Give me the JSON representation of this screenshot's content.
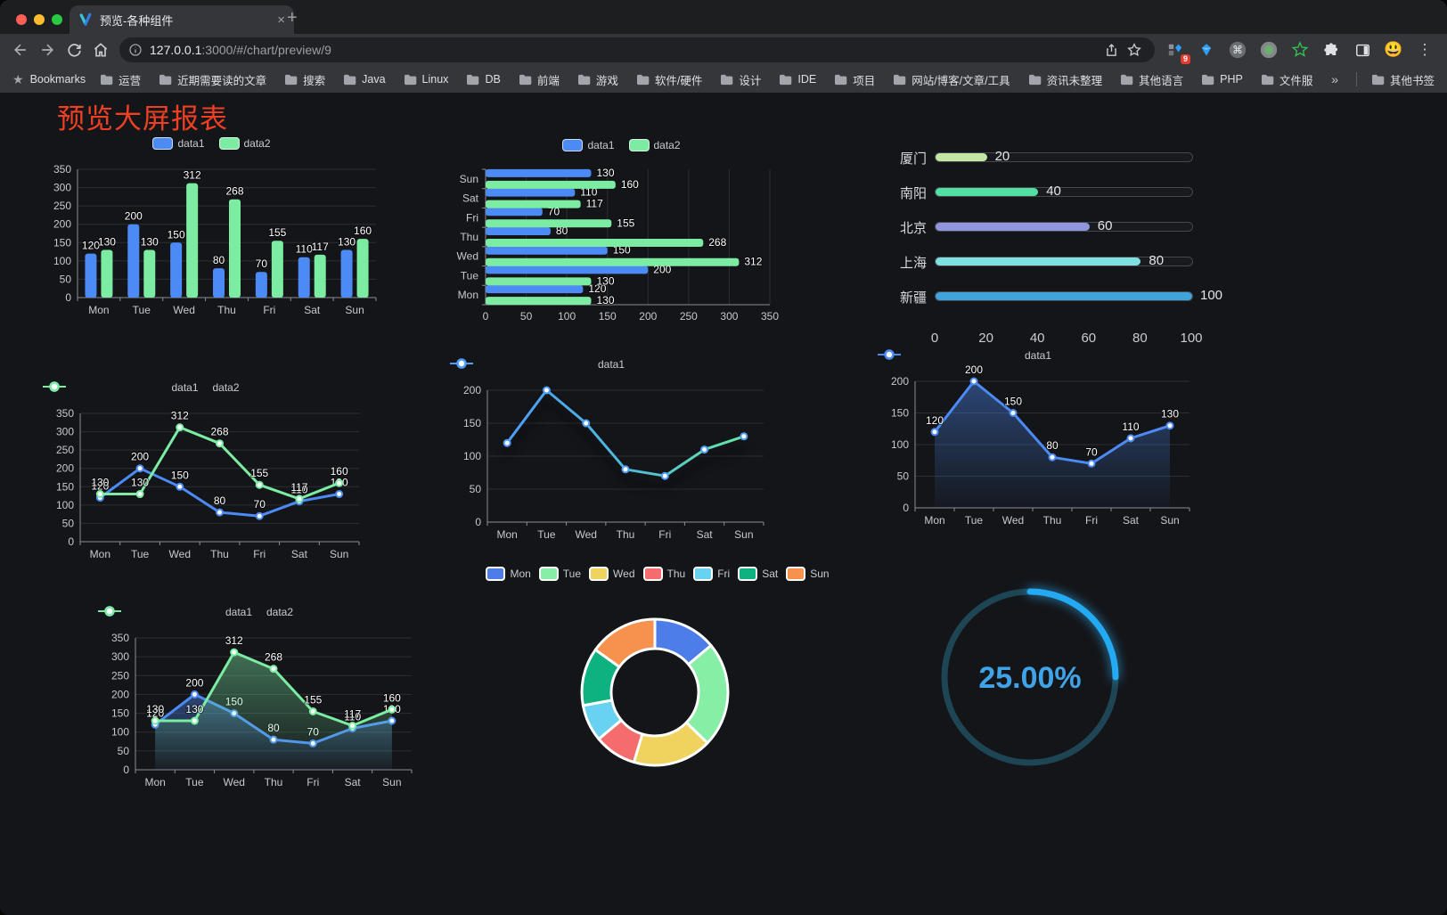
{
  "browser": {
    "tab_title": "预览-各种组件",
    "url_host": "127.0.0.1",
    "url_rest": ":3000/#/chart/preview/9",
    "bookmarks_label": "Bookmarks",
    "bookmarks": [
      "运营",
      "近期需要读的文章",
      "搜索",
      "Java",
      "Linux",
      "DB",
      "前端",
      "游戏",
      "软件/硬件",
      "设计",
      "IDE",
      "项目",
      "网站/博客/文章/工具",
      "资讯未整理",
      "其他语言",
      "PHP",
      "文件服务器"
    ],
    "bookmarks_overflow": "»",
    "other_bookmarks": "其他书签",
    "extension_badge": "9",
    "new_tab_plus": "+",
    "tab_close": "×",
    "menu_dots": "⋮",
    "emoji_avatar": "😃"
  },
  "page": {
    "title": "预览大屏报表"
  },
  "chart_data": [
    {
      "type": "bar",
      "categories": [
        "Mon",
        "Tue",
        "Wed",
        "Thu",
        "Fri",
        "Sat",
        "Sun"
      ],
      "series": [
        {
          "name": "data1",
          "color": "#4C8BF5",
          "values": [
            120,
            200,
            150,
            80,
            70,
            110,
            130
          ]
        },
        {
          "name": "data2",
          "color": "#7CECA3",
          "values": [
            130,
            130,
            312,
            268,
            155,
            117,
            160
          ]
        }
      ],
      "ylim": [
        0,
        350
      ],
      "ytick": 50,
      "legend": true,
      "labels": true,
      "grid": true
    },
    {
      "type": "hbar",
      "categories_top_to_bottom": [
        "Sun",
        "Sat",
        "Fri",
        "Thu",
        "Wed",
        "Tue",
        "Mon"
      ],
      "series": [
        {
          "name": "data1",
          "color": "#4C8BF5",
          "values": [
            130,
            110,
            70,
            80,
            150,
            200,
            120
          ]
        },
        {
          "name": "data2",
          "color": "#7CECA3",
          "values": [
            160,
            117,
            155,
            268,
            312,
            130,
            130
          ]
        }
      ],
      "xlim": [
        0,
        350
      ],
      "xtick": 50,
      "legend": true,
      "labels": true,
      "grid": true
    },
    {
      "type": "progress",
      "rows": [
        {
          "label": "厦门",
          "value": 20,
          "color": "#C3E6A2"
        },
        {
          "label": "南阳",
          "value": 40,
          "color": "#52DFA4"
        },
        {
          "label": "北京",
          "value": 60,
          "color": "#9096DE"
        },
        {
          "label": "上海",
          "value": 80,
          "color": "#7FDFE1"
        },
        {
          "label": "新疆",
          "value": 100,
          "color": "#3EA4DB"
        }
      ],
      "xlim": [
        0,
        100
      ],
      "xticks": [
        0,
        20,
        40,
        60,
        80,
        100
      ]
    },
    {
      "type": "line",
      "categories": [
        "Mon",
        "Tue",
        "Wed",
        "Thu",
        "Fri",
        "Sat",
        "Sun"
      ],
      "series": [
        {
          "name": "data1",
          "color": "#4C8BF5",
          "values": [
            120,
            200,
            150,
            80,
            70,
            110,
            130
          ]
        },
        {
          "name": "data2",
          "color": "#7CECA3",
          "values": [
            130,
            130,
            312,
            268,
            155,
            117,
            160
          ]
        }
      ],
      "ylim": [
        0,
        350
      ],
      "ytick": 50,
      "legend": true,
      "labels": true,
      "area": false
    },
    {
      "type": "line",
      "categories": [
        "Mon",
        "Tue",
        "Wed",
        "Thu",
        "Fri",
        "Sat",
        "Sun"
      ],
      "series": [
        {
          "name": "data1",
          "color": "#4E9CF6",
          "values": [
            120,
            200,
            150,
            80,
            70,
            110,
            130
          ]
        }
      ],
      "ylim": [
        0,
        200
      ],
      "ytick": 50,
      "legend": true,
      "labels": false,
      "area": false,
      "gradient": [
        "#4E9CF6",
        "#4FB9D9",
        "#66E6A3"
      ],
      "shadow": true
    },
    {
      "type": "line",
      "categories": [
        "Mon",
        "Tue",
        "Wed",
        "Thu",
        "Fri",
        "Sat",
        "Sun"
      ],
      "series": [
        {
          "name": "data1",
          "color": "#4C8BF5",
          "values": [
            120,
            200,
            150,
            80,
            70,
            110,
            130
          ]
        }
      ],
      "ylim": [
        0,
        200
      ],
      "ytick": 50,
      "legend": true,
      "labels": true,
      "area": true
    },
    {
      "type": "line",
      "categories": [
        "Mon",
        "Tue",
        "Wed",
        "Thu",
        "Fri",
        "Sat",
        "Sun"
      ],
      "series": [
        {
          "name": "data1",
          "color": "#4C8BF5",
          "values": [
            120,
            200,
            150,
            80,
            70,
            110,
            130
          ]
        },
        {
          "name": "data2",
          "color": "#7CECA3",
          "values": [
            130,
            130,
            312,
            268,
            155,
            117,
            160
          ]
        }
      ],
      "ylim": [
        0,
        350
      ],
      "ytick": 50,
      "legend": true,
      "labels": true,
      "area": true
    },
    {
      "type": "donut",
      "categories": [
        "Mon",
        "Tue",
        "Wed",
        "Thu",
        "Fri",
        "Sat",
        "Sun"
      ],
      "values": [
        120,
        200,
        150,
        80,
        70,
        110,
        130
      ],
      "colors": [
        "#4C7DE8",
        "#86EFA5",
        "#F0D35E",
        "#F56C6C",
        "#69D2F2",
        "#0EB180",
        "#F6924E"
      ],
      "legend": true
    },
    {
      "type": "ring",
      "percent": 25,
      "label": "25.00%",
      "color": "#23AAF2",
      "track": "#1D4553",
      "text_color": "#3FA3E8"
    }
  ]
}
